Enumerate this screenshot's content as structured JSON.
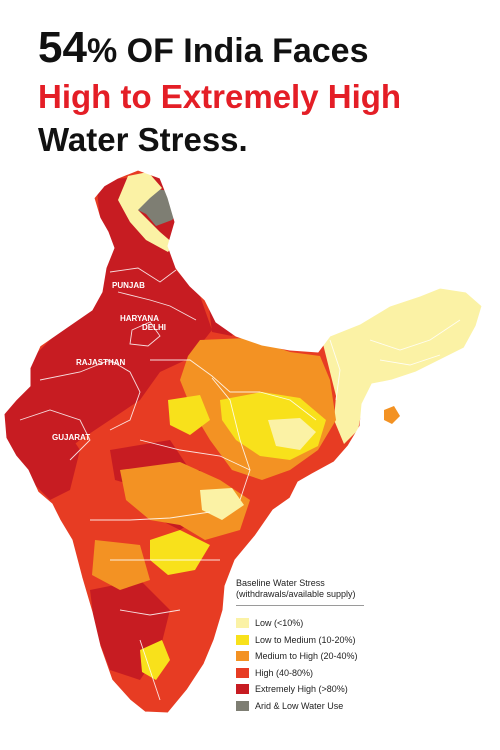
{
  "headline": {
    "big_number": "54",
    "percent": "%",
    "rest": " OF India Faces",
    "line2": "High to Extremely High",
    "line3": "Water Stress."
  },
  "map": {
    "state_labels": {
      "punjab": "PUNJAB",
      "haryana": "HARYANA",
      "delhi": "DELHI",
      "rajasthan": "RAJASTHAN",
      "gujarat": "GUJARAT"
    }
  },
  "legend": {
    "title_line1": "Baseline Water Stress",
    "title_line2": "(withdrawals/available supply)",
    "items": [
      {
        "label": "Low (<10%)",
        "color": "#fbf2a5"
      },
      {
        "label": "Low to Medium (10-20%)",
        "color": "#f8e11b"
      },
      {
        "label": "Medium to High (20-40%)",
        "color": "#f39223"
      },
      {
        "label": "High (40-80%)",
        "color": "#e73c23"
      },
      {
        "label": "Extremely High (>80%)",
        "color": "#c71c22"
      },
      {
        "label": "Arid & Low Water Use",
        "color": "#7e7e73"
      }
    ]
  }
}
